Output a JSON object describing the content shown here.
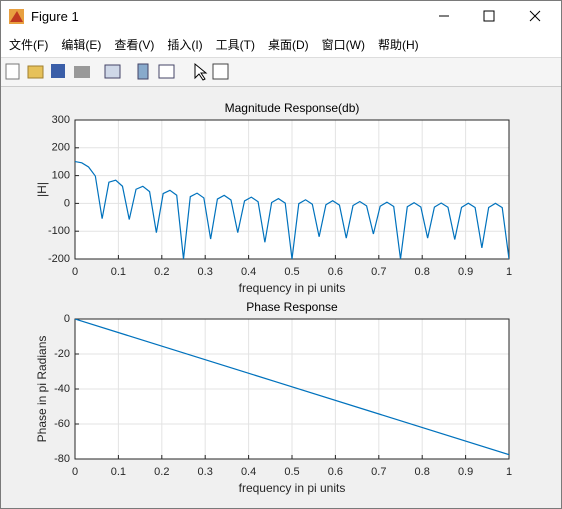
{
  "window": {
    "title": "Figure 1"
  },
  "menu": [
    "文件(F)",
    "编辑(E)",
    "查看(V)",
    "插入(I)",
    "工具(T)",
    "桌面(D)",
    "窗口(W)",
    "帮助(H)"
  ],
  "chart_data": [
    {
      "type": "line",
      "title": "Magnitude Response(db)",
      "x_label": "frequency in pi units",
      "y_label": "|H|",
      "xlim": [
        0,
        1
      ],
      "ylim": [
        -200,
        300
      ],
      "grid": true,
      "xticks": [
        0,
        0.1,
        0.2,
        0.3,
        0.4,
        0.5,
        0.6,
        0.7,
        0.8,
        0.9,
        1
      ],
      "yticks": [
        -200,
        -100,
        0,
        100,
        200,
        300
      ],
      "series": [
        {
          "color": "#0072bd",
          "x": [
            0,
            0.015625,
            0.03125,
            0.046875,
            0.0625,
            0.078125,
            0.09375,
            0.109375,
            0.125,
            0.140625,
            0.15625,
            0.171875,
            0.1875,
            0.203125,
            0.21875,
            0.234375,
            0.25,
            0.265625,
            0.28125,
            0.296875,
            0.3125,
            0.328125,
            0.34375,
            0.359375,
            0.375,
            0.390625,
            0.40625,
            0.421875,
            0.4375,
            0.453125,
            0.46875,
            0.484375,
            0.5,
            0.515625,
            0.53125,
            0.546875,
            0.5625,
            0.578125,
            0.59375,
            0.609375,
            0.625,
            0.640625,
            0.65625,
            0.671875,
            0.6875,
            0.703125,
            0.71875,
            0.734375,
            0.75,
            0.765625,
            0.78125,
            0.796875,
            0.8125,
            0.828125,
            0.84375,
            0.859375,
            0.875,
            0.890625,
            0.90625,
            0.921875,
            0.9375,
            0.953125,
            0.96875,
            0.984375,
            1
          ],
          "values": [
            150.5,
            146,
            130.9,
            98.3,
            -55,
            76.2,
            83.4,
            61.7,
            -58,
            50.9,
            61.4,
            42.4,
            -105,
            35.3,
            47.2,
            29.3,
            -200,
            24.2,
            36.9,
            19.7,
            -128,
            15.7,
            28.9,
            12.1,
            -105,
            8.9,
            22.5,
            6,
            -140,
            3.4,
            17.3,
            1.1,
            -200,
            -1,
            13,
            -3,
            -120,
            -4.7,
            9.5,
            -6.3,
            -125,
            -7.7,
            6.7,
            -9,
            -110,
            -10.2,
            4.4,
            -11.1,
            -200,
            -12,
            2.6,
            -12.8,
            -125,
            -13.4,
            1.3,
            -14,
            -130,
            -14.4,
            0.5,
            -14.7,
            -160,
            -14.9,
            0.1,
            -15,
            -200
          ]
        }
      ]
    },
    {
      "type": "line",
      "title": "Phase Response",
      "x_label": "frequency in pi units",
      "y_label": "Phase in pi Radians",
      "xlim": [
        0,
        1
      ],
      "ylim": [
        -80,
        0
      ],
      "grid": true,
      "xticks": [
        0,
        0.1,
        0.2,
        0.3,
        0.4,
        0.5,
        0.6,
        0.7,
        0.8,
        0.9,
        1
      ],
      "yticks": [
        -80,
        -60,
        -40,
        -20,
        0
      ],
      "series": [
        {
          "color": "#0072bd",
          "x": [
            0,
            1
          ],
          "values": [
            0,
            -77.5
          ]
        }
      ]
    }
  ]
}
